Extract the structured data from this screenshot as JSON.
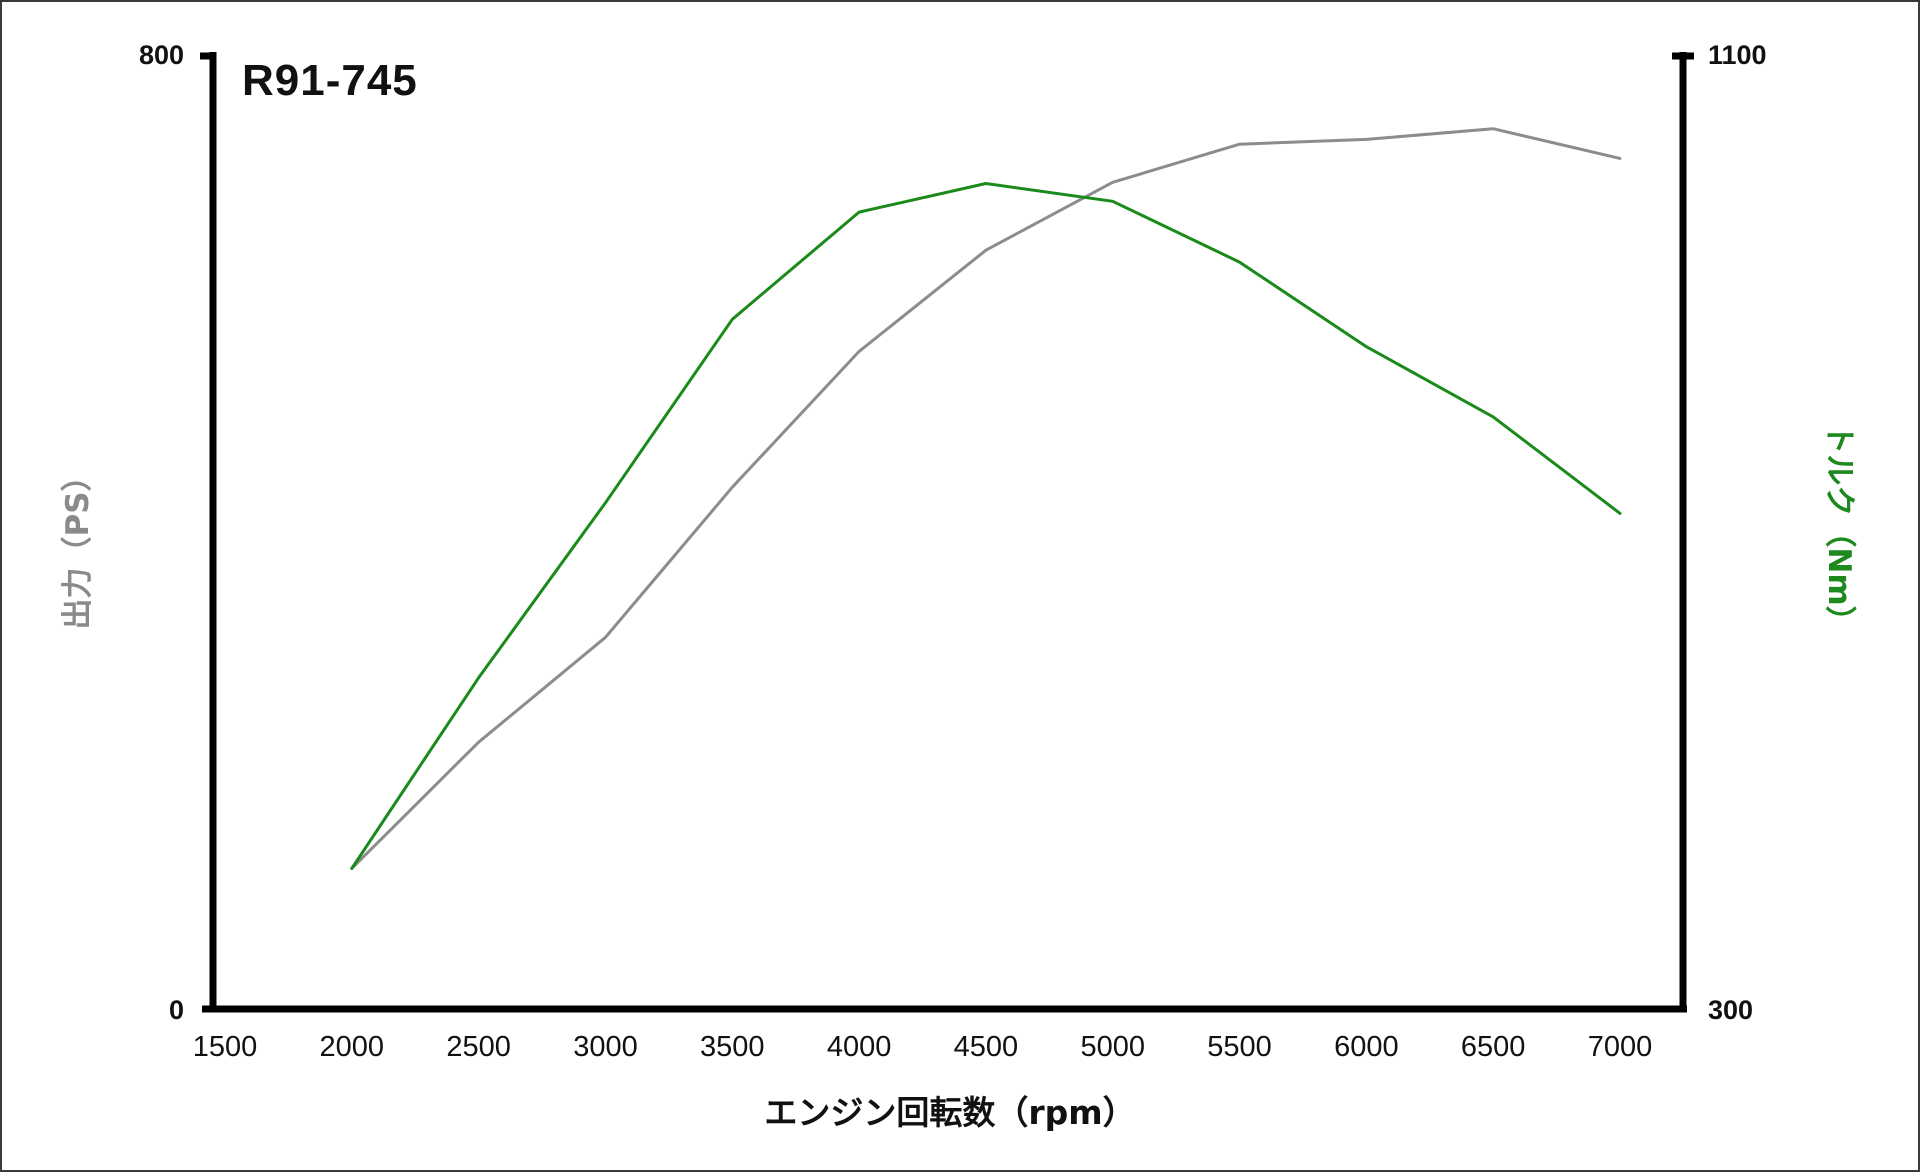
{
  "chart_data": {
    "type": "line",
    "title": "R91-745",
    "xlabel": "エンジン回転数（rpm）",
    "ylabel_left": "出力（PS）",
    "ylabel_right": "トルク（Nm）",
    "x_ticks": [
      1500,
      2000,
      2500,
      3000,
      3500,
      4000,
      4500,
      5000,
      5500,
      6000,
      6500,
      7000
    ],
    "xlim": [
      1500,
      7000
    ],
    "ylim_left": [
      0,
      800
    ],
    "ylim_right": [
      300,
      1100
    ],
    "y_ticks_left": [
      0,
      800
    ],
    "y_ticks_right": [
      300,
      1100
    ],
    "grid": false,
    "legend": "none",
    "x": [
      2000,
      2500,
      3000,
      3500,
      4000,
      4500,
      5000,
      5500,
      6000,
      6500,
      7000
    ],
    "series": [
      {
        "name": "出力 (PS)",
        "axis": "left",
        "color": "#8c8c8c",
        "values": [
          118,
          224,
          312,
          438,
          552,
          637,
          694,
          726,
          730,
          739,
          714
        ]
      },
      {
        "name": "トルク (Nm)",
        "axis": "right",
        "color": "#1a8a1a",
        "values": [
          418,
          578,
          725,
          879,
          969,
          993,
          978,
          927,
          856,
          797,
          716
        ]
      }
    ]
  },
  "labels": {
    "title": "R91-745",
    "xlabel": "エンジン回転数（rpm）",
    "ylabel_left": "出力（PS）",
    "ylabel_right": "トルク（Nm）",
    "y_left_top": "800",
    "y_left_bottom": "0",
    "y_right_top": "1100",
    "y_right_bottom": "300"
  },
  "colors": {
    "power": "#8c8c8c",
    "torque": "#1a8a1a",
    "axis": "#000000"
  }
}
